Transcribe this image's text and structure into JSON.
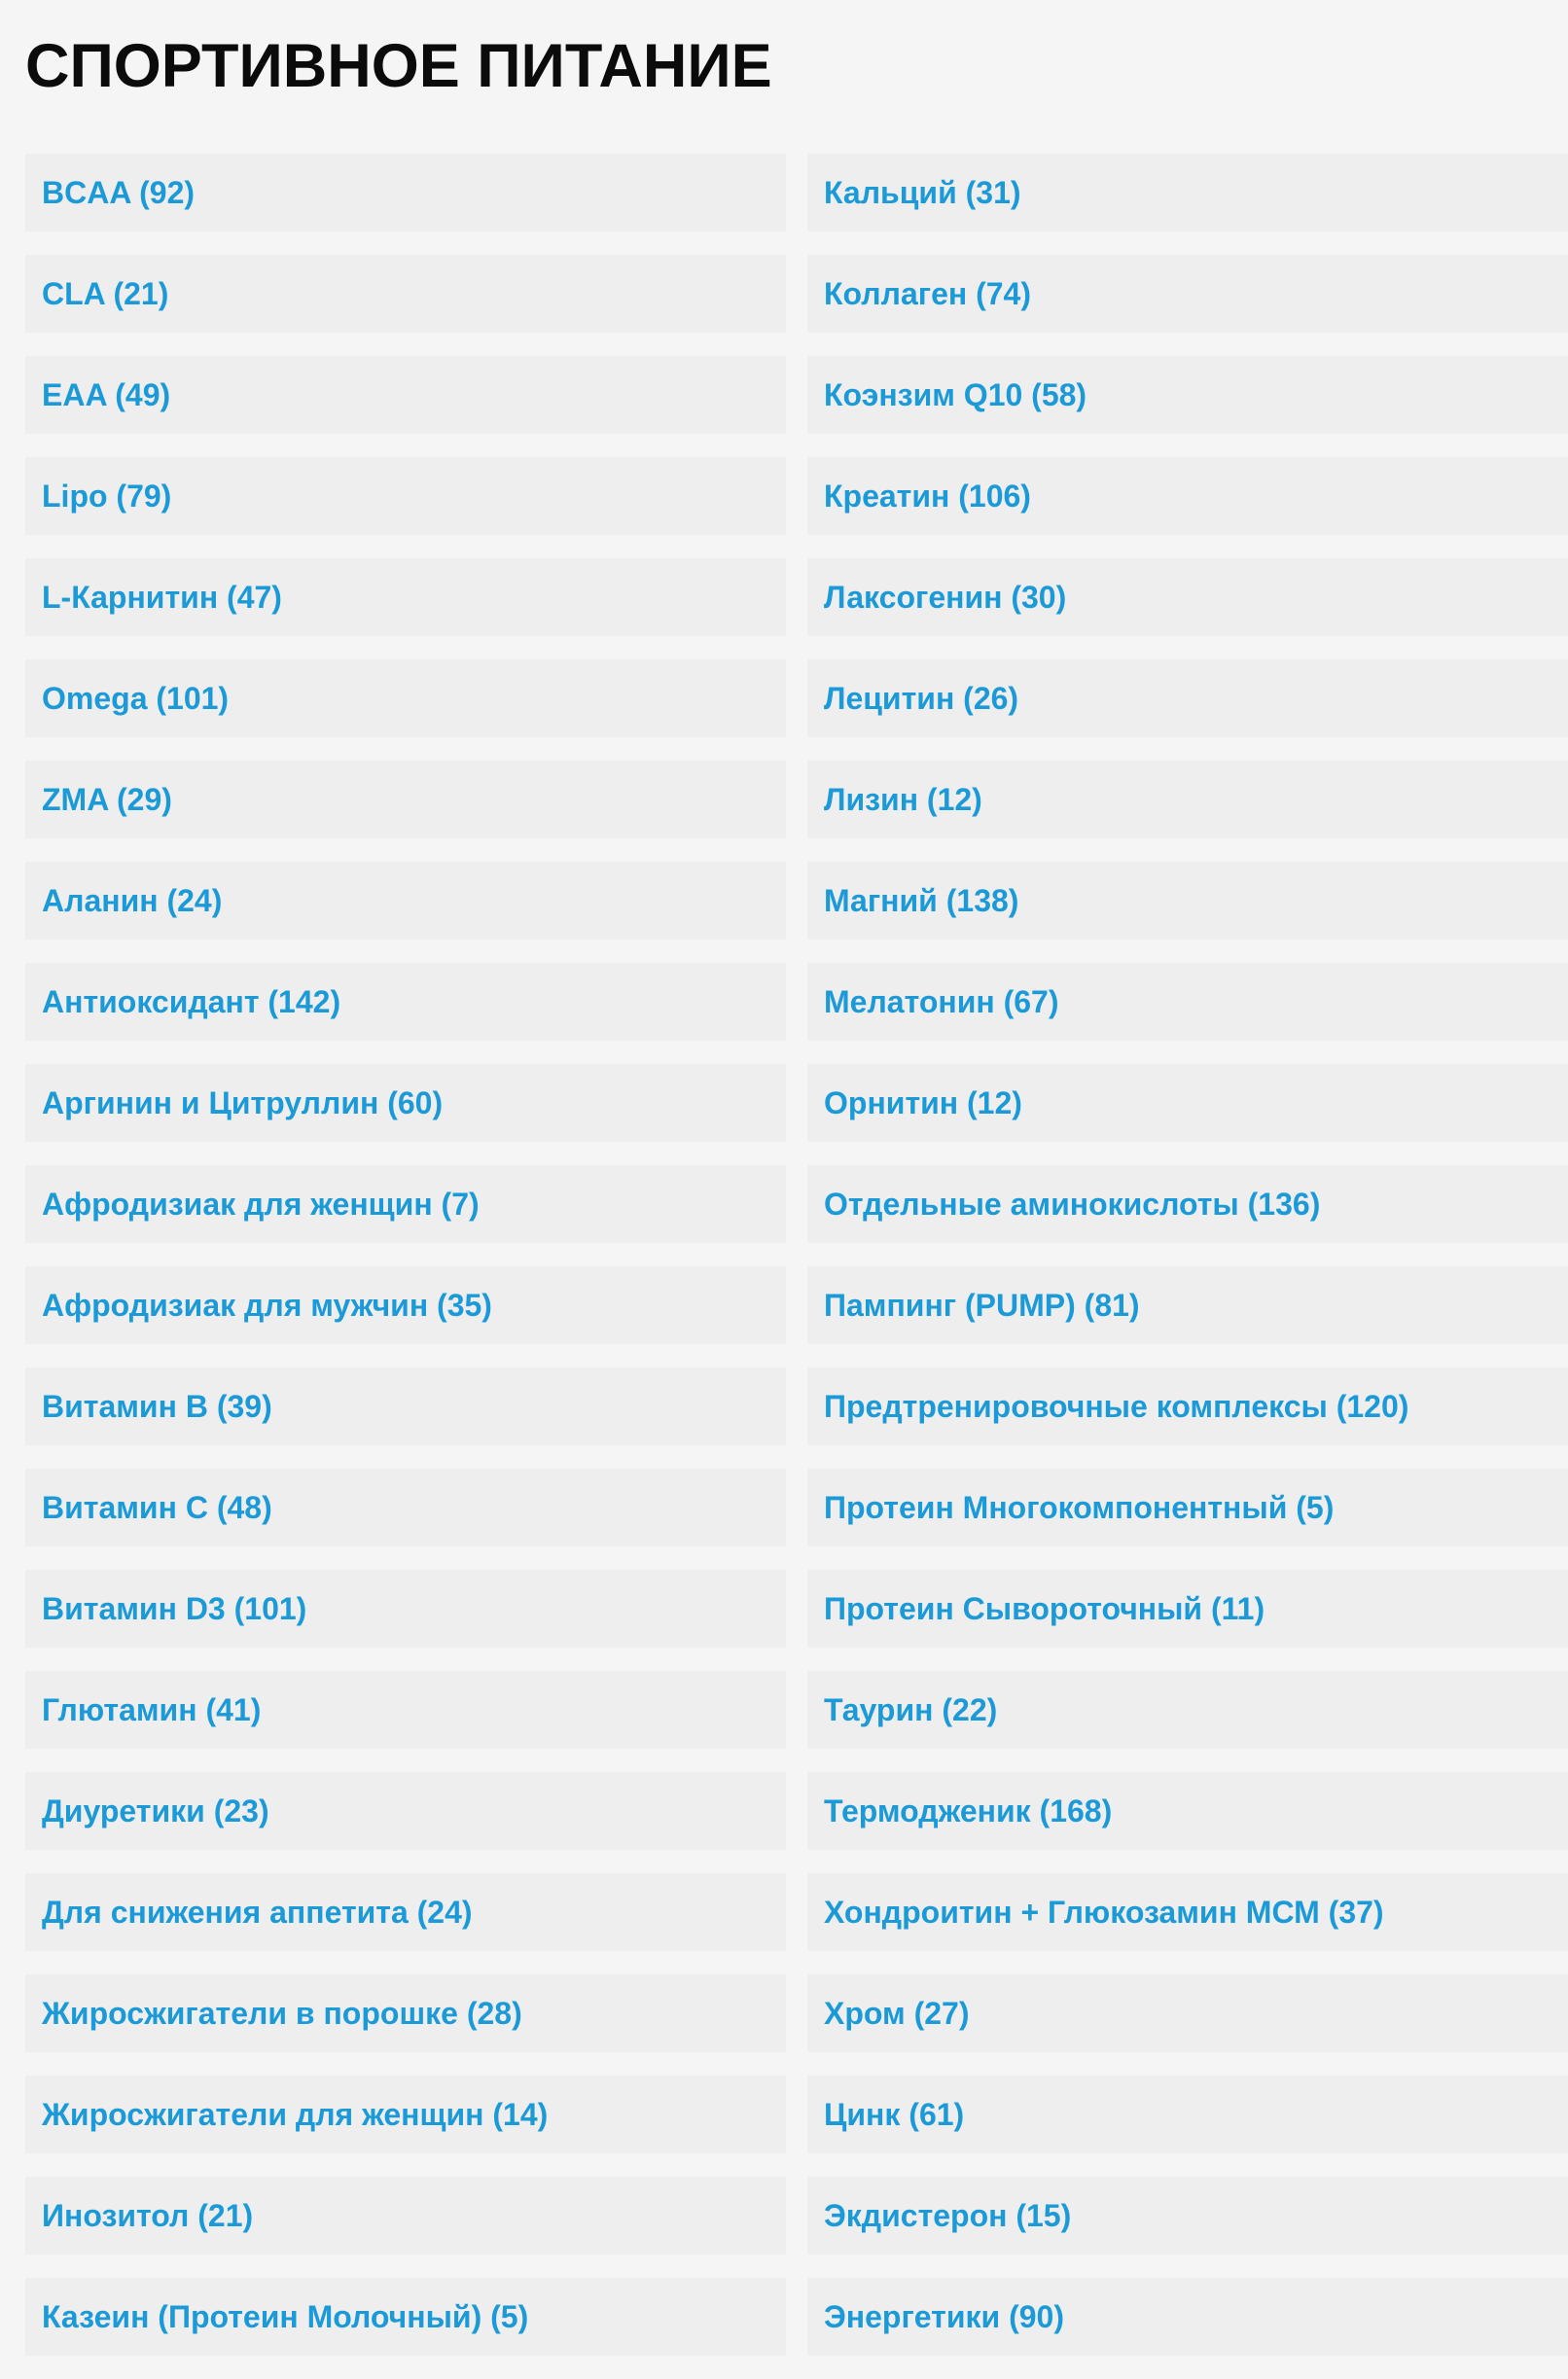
{
  "page": {
    "title": "СПОРТИВНОЕ ПИТАНИЕ"
  },
  "colors": {
    "page_background": "#f5f5f6",
    "item_background": "#eeeeef",
    "link_blue": "#1b9ad7",
    "title_black": "#0b0b0b"
  },
  "categories": {
    "columns": [
      [
        {
          "name": "BCAA",
          "count": 92
        },
        {
          "name": "CLA",
          "count": 21
        },
        {
          "name": "EAA",
          "count": 49
        },
        {
          "name": "Lipo",
          "count": 79
        },
        {
          "name": "L-Карнитин",
          "count": 47
        },
        {
          "name": "Omega",
          "count": 101
        },
        {
          "name": "ZMA",
          "count": 29
        },
        {
          "name": "Аланин",
          "count": 24
        },
        {
          "name": "Антиоксидант",
          "count": 142
        },
        {
          "name": "Аргинин и Цитруллин",
          "count": 60
        },
        {
          "name": "Афродизиак для женщин",
          "count": 7
        },
        {
          "name": "Афродизиак для мужчин",
          "count": 35
        },
        {
          "name": "Витамин B",
          "count": 39
        },
        {
          "name": "Витамин C",
          "count": 48
        },
        {
          "name": "Витамин D3",
          "count": 101
        },
        {
          "name": "Глютамин",
          "count": 41
        },
        {
          "name": "Диуретики",
          "count": 23
        },
        {
          "name": "Для снижения аппетита",
          "count": 24
        },
        {
          "name": "Жиросжигатели в порошке",
          "count": 28
        },
        {
          "name": "Жиросжигатели для женщин",
          "count": 14
        },
        {
          "name": "Инозитол",
          "count": 21
        },
        {
          "name": "Казеин (Протеин Молочный)",
          "count": 5
        }
      ],
      [
        {
          "name": "Кальций",
          "count": 31
        },
        {
          "name": "Коллаген",
          "count": 74
        },
        {
          "name": "Коэнзим Q10",
          "count": 58
        },
        {
          "name": "Креатин",
          "count": 106
        },
        {
          "name": "Лаксогенин",
          "count": 30
        },
        {
          "name": "Лецитин",
          "count": 26
        },
        {
          "name": "Лизин",
          "count": 12
        },
        {
          "name": "Магний",
          "count": 138
        },
        {
          "name": "Мелатонин",
          "count": 67
        },
        {
          "name": "Орнитин",
          "count": 12
        },
        {
          "name": "Отдельные аминокислоты",
          "count": 136
        },
        {
          "name": "Пампинг (PUMP)",
          "count": 81
        },
        {
          "name": "Предтренировочные комплексы",
          "count": 120
        },
        {
          "name": "Протеин Многокомпонентный",
          "count": 5
        },
        {
          "name": "Протеин Сывороточный",
          "count": 11
        },
        {
          "name": "Таурин",
          "count": 22
        },
        {
          "name": "Термодженик",
          "count": 168
        },
        {
          "name": "Хондроитин + Глюкозамин МСМ",
          "count": 37
        },
        {
          "name": "Хром",
          "count": 27
        },
        {
          "name": "Цинк",
          "count": 61
        },
        {
          "name": "Экдистерон",
          "count": 15
        },
        {
          "name": "Энергетики",
          "count": 90
        }
      ]
    ]
  }
}
